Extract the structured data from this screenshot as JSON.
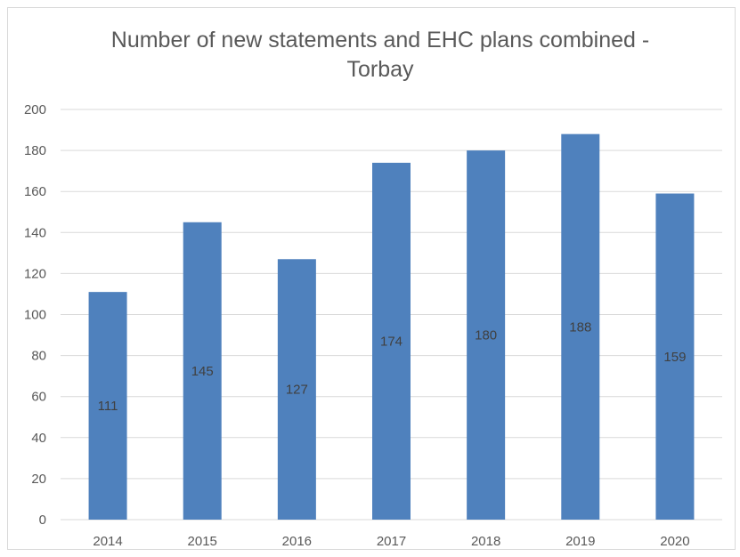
{
  "chart_data": {
    "type": "bar",
    "title_lines": [
      "Number of new statements and EHC plans combined -",
      "Torbay"
    ],
    "categories": [
      "2014",
      "2015",
      "2016",
      "2017",
      "2018",
      "2019",
      "2020"
    ],
    "series": [
      {
        "values": [
          111,
          145,
          127,
          174,
          180,
          188,
          159
        ]
      }
    ],
    "data_labels": [
      "111",
      "145",
      "127",
      "174",
      "180",
      "188",
      "159"
    ],
    "y_ticks": [
      0,
      20,
      40,
      60,
      80,
      100,
      120,
      140,
      160,
      180,
      200
    ],
    "ylim": [
      0,
      200
    ],
    "xlabel": "",
    "ylabel": "",
    "grid": true,
    "legend": "none",
    "bar_color": "#4f81bd",
    "grid_color": "#d9d9d9",
    "text_color": "#595959"
  }
}
